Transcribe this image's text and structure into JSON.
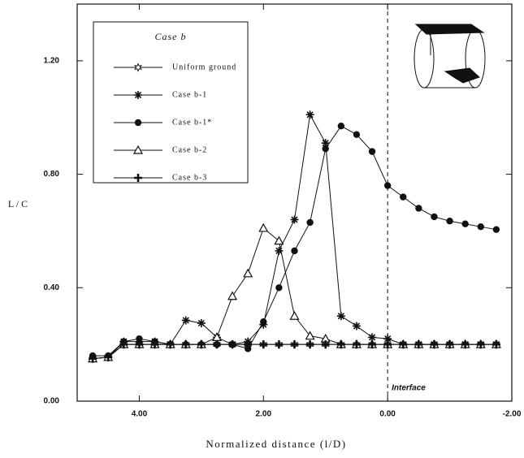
{
  "chart_data": {
    "type": "line",
    "x_label": "Normalized distance (l/D)",
    "y_label": "L / C",
    "legend_title": "Case b",
    "legend_position": "upper left",
    "x": [
      4.75,
      4.5,
      4.25,
      4.0,
      3.75,
      3.5,
      3.25,
      3.0,
      2.75,
      2.5,
      2.25,
      2.0,
      1.75,
      1.5,
      1.25,
      1.0,
      0.75,
      0.5,
      0.25,
      0.0,
      -0.25,
      -0.5,
      -0.75,
      -1.0,
      -1.25,
      -1.5,
      -1.75
    ],
    "series": [
      {
        "name": "Uniform ground",
        "color": "#111",
        "marker": "hollow-star",
        "values": [
          0.15,
          0.155,
          0.2,
          0.2,
          0.2,
          0.2,
          0.2,
          0.2,
          0.2,
          0.2,
          0.2,
          0.2,
          0.2,
          0.2,
          0.2,
          0.2,
          0.2,
          0.2,
          0.2,
          0.2,
          0.2,
          0.2,
          0.2,
          0.2,
          0.2,
          0.2,
          0.2
        ]
      },
      {
        "name": "Case b-1",
        "color": "#111",
        "marker": "asterisk",
        "values": [
          0.15,
          0.155,
          0.21,
          0.21,
          0.21,
          0.2,
          0.285,
          0.275,
          0.225,
          0.2,
          0.21,
          0.27,
          0.53,
          0.64,
          1.01,
          0.91,
          0.3,
          0.265,
          0.225,
          0.22,
          0.2,
          0.2,
          0.2,
          0.2,
          0.2,
          0.2,
          0.2
        ]
      },
      {
        "name": "Case b-1*",
        "color": "#111",
        "marker": "circle",
        "values": [
          0.16,
          0.16,
          0.21,
          0.22,
          0.21,
          0.2,
          0.2,
          0.2,
          0.2,
          0.2,
          0.185,
          0.28,
          0.4,
          0.53,
          0.63,
          0.89,
          0.97,
          0.94,
          0.88,
          0.76,
          0.72,
          0.68,
          0.65,
          0.635,
          0.625,
          0.615,
          0.605
        ]
      },
      {
        "name": "Case b-2",
        "color": "#111",
        "marker": "triangle",
        "values": [
          0.15,
          0.155,
          0.2,
          0.2,
          0.2,
          0.2,
          0.2,
          0.2,
          0.225,
          0.37,
          0.45,
          0.61,
          0.565,
          0.3,
          0.23,
          0.22,
          0.2,
          0.2,
          0.2,
          0.2,
          0.2,
          0.2,
          0.2,
          0.2,
          0.2,
          0.2,
          0.2
        ]
      },
      {
        "name": "Case b-3",
        "color": "#111",
        "marker": "plus",
        "values": [
          0.15,
          0.155,
          0.2,
          0.2,
          0.2,
          0.2,
          0.2,
          0.2,
          0.2,
          0.2,
          0.2,
          0.2,
          0.2,
          0.2,
          0.2,
          0.2,
          0.2,
          0.2,
          0.2,
          0.2,
          0.2,
          0.2,
          0.2,
          0.2,
          0.2,
          0.2,
          0.2
        ]
      }
    ],
    "annotations": [
      {
        "text": "Interface",
        "x": 0
      }
    ],
    "xlim": [
      5,
      -2
    ],
    "xticks": [
      {
        "value": 4,
        "label": "4.00"
      },
      {
        "value": 2,
        "label": "2.00"
      },
      {
        "value": 0,
        "label": "0.00"
      },
      {
        "value": -2,
        "label": "-2.00"
      }
    ],
    "ylim": [
      0,
      1.4
    ],
    "yticks": [
      {
        "value": 0,
        "label": "0.00"
      },
      {
        "value": 0.4,
        "label": "0.40"
      },
      {
        "value": 0.8,
        "label": "0.80"
      },
      {
        "value": 1.2,
        "label": "1.20"
      }
    ],
    "grid": false
  }
}
